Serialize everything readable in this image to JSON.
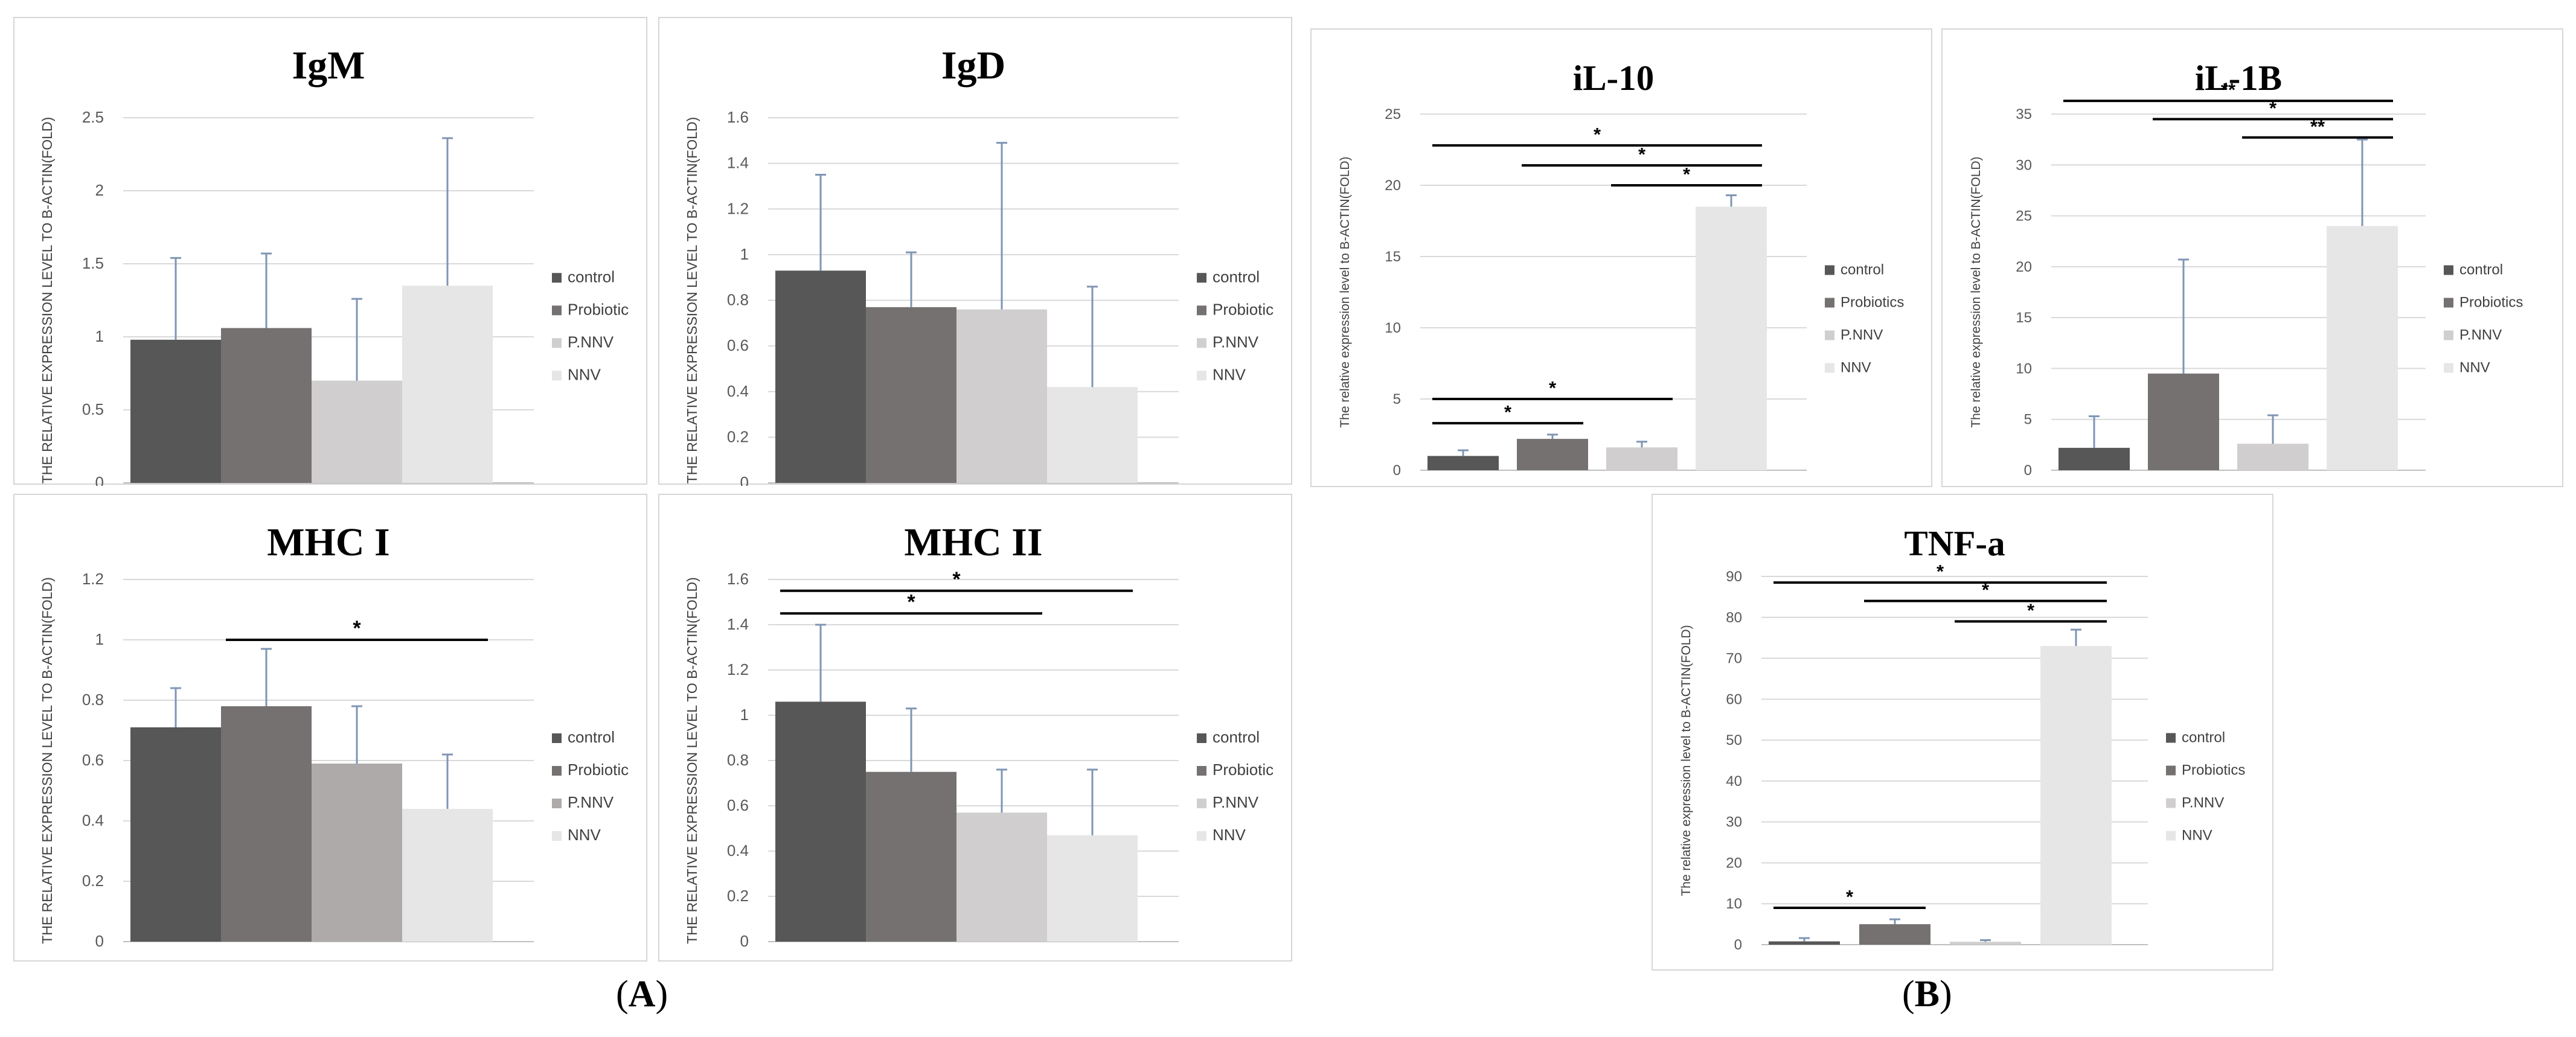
{
  "figure": {
    "panel_labels": [
      {
        "open": "(",
        "letter": "A",
        "close": ")"
      },
      {
        "open": "(",
        "letter": "B",
        "close": ")"
      }
    ]
  },
  "colors": {
    "control": "#575757",
    "probiotic": "#757171",
    "pnnv": "#d0cece",
    "nnv": "#e7e6e6",
    "error_bar": "#7f95b4",
    "gridline": "#d9d9d9",
    "sig_line": "#000000"
  },
  "chart_data": [
    {
      "type": "bar",
      "title": "IgM",
      "ylabel": "THE RELATIVE EXPRESSION LEVEL TO B-ACTIN(FOLD)",
      "ylim": [
        0,
        2.5
      ],
      "yticks": [
        "0",
        "0.5",
        "1",
        "1.5",
        "2",
        "2.5"
      ],
      "categories": [
        "control",
        "Probiotic",
        "P.NNV",
        "NNV"
      ],
      "values": [
        0.98,
        1.06,
        0.7,
        1.35
      ],
      "errors": [
        0.56,
        0.51,
        0.56,
        1.01
      ],
      "bar_colors": [
        "#575757",
        "#757171",
        "#d0cece",
        "#e7e6e6"
      ],
      "legend": [
        {
          "label": "control",
          "color": "#575757"
        },
        {
          "label": "Probiotic",
          "color": "#757171"
        },
        {
          "label": "P.NNV",
          "color": "#d0cece"
        },
        {
          "label": "NNV",
          "color": "#e7e6e6"
        }
      ],
      "significance": []
    },
    {
      "type": "bar",
      "title": "IgD",
      "ylabel": "THE RELATIVE EXPRESSION LEVEL TO B-ACTIN(FOLD)",
      "ylim": [
        0,
        1.6
      ],
      "yticks": [
        "0",
        "0.2",
        "0.4",
        "0.6",
        "0.8",
        "1",
        "1.2",
        "1.4",
        "1.6"
      ],
      "categories": [
        "control",
        "Probiotic",
        "P.NNV",
        "NNV"
      ],
      "values": [
        0.93,
        0.77,
        0.76,
        0.42
      ],
      "errors": [
        0.42,
        0.24,
        0.73,
        0.44
      ],
      "bar_colors": [
        "#575757",
        "#757171",
        "#d0cece",
        "#e7e6e6"
      ],
      "legend": [
        {
          "label": "control",
          "color": "#575757"
        },
        {
          "label": "Probiotic",
          "color": "#757171"
        },
        {
          "label": "P.NNV",
          "color": "#d0cece"
        },
        {
          "label": "NNV",
          "color": "#e7e6e6"
        }
      ],
      "significance": []
    },
    {
      "type": "bar",
      "title": "MHC I",
      "ylabel": "THE RELATIVE EXPRESSION LEVEL TO B-ACTIN(FOLD)",
      "ylim": [
        0,
        1.2
      ],
      "yticks": [
        "0",
        "0.2",
        "0.4",
        "0.6",
        "0.8",
        "1",
        "1.2"
      ],
      "categories": [
        "control",
        "Probiotic",
        "P.NNV",
        "NNV"
      ],
      "values": [
        0.71,
        0.78,
        0.59,
        0.44
      ],
      "errors": [
        0.13,
        0.19,
        0.19,
        0.18
      ],
      "bar_colors": [
        "#575757",
        "#757171",
        "#aeaaaa",
        "#e7e6e6"
      ],
      "legend": [
        {
          "label": "control",
          "color": "#575757"
        },
        {
          "label": "Probiotic",
          "color": "#757171"
        },
        {
          "label": "P.NNV",
          "color": "#aeaaaa"
        },
        {
          "label": "NNV",
          "color": "#e7e6e6"
        }
      ],
      "significance": [
        {
          "from": 1,
          "to": 3,
          "level": 1.0,
          "label": "*"
        }
      ]
    },
    {
      "type": "bar",
      "title": "MHC II",
      "ylabel": "THE RELATIVE EXPRESSION LEVEL TO B-ACTIN(FOLD)",
      "ylim": [
        0,
        1.6
      ],
      "yticks": [
        "0",
        "0.2",
        "0.4",
        "0.6",
        "0.8",
        "1",
        "1.2",
        "1.4",
        "1.6"
      ],
      "categories": [
        "control",
        "Probiotic",
        "P.NNV",
        "NNV"
      ],
      "values": [
        1.06,
        0.75,
        0.57,
        0.47
      ],
      "errors": [
        0.34,
        0.28,
        0.19,
        0.29
      ],
      "bar_colors": [
        "#575757",
        "#757171",
        "#d0cece",
        "#e7e6e6"
      ],
      "legend": [
        {
          "label": "control",
          "color": "#575757"
        },
        {
          "label": "Probiotic",
          "color": "#757171"
        },
        {
          "label": "P.NNV",
          "color": "#d0cece"
        },
        {
          "label": "NNV",
          "color": "#e7e6e6"
        }
      ],
      "significance": [
        {
          "from": 0,
          "to": 3,
          "level": 1.55,
          "label": "*"
        },
        {
          "from": 0,
          "to": 2,
          "level": 1.45,
          "label": "*"
        }
      ]
    },
    {
      "type": "bar",
      "title": "iL-10",
      "ylabel": "The relative expression level to B-ACTIN(FOLD)",
      "ylim": [
        0,
        25
      ],
      "yticks": [
        "0",
        "5",
        "10",
        "15",
        "20",
        "25"
      ],
      "categories": [
        "control",
        "Probiotics",
        "P.NNV",
        "NNV"
      ],
      "values": [
        1.0,
        2.2,
        1.6,
        18.5
      ],
      "errors": [
        0.4,
        0.3,
        0.4,
        0.8
      ],
      "bar_colors": [
        "#575757",
        "#757171",
        "#d0cece",
        "#e7e6e6"
      ],
      "legend": [
        {
          "label": "control",
          "color": "#575757"
        },
        {
          "label": "Probiotics",
          "color": "#757171"
        },
        {
          "label": "P.NNV",
          "color": "#d0cece"
        },
        {
          "label": "NNV",
          "color": "#e7e6e6"
        }
      ],
      "significance": [
        {
          "from": 0,
          "to": 3,
          "level": 22.8,
          "label": "*"
        },
        {
          "from": 1,
          "to": 3,
          "level": 21.4,
          "label": "*"
        },
        {
          "from": 2,
          "to": 3,
          "level": 20.0,
          "label": "*"
        },
        {
          "from": 0,
          "to": 2,
          "level": 5.0,
          "label": "*"
        },
        {
          "from": 0,
          "to": 1,
          "level": 3.3,
          "label": "*"
        }
      ]
    },
    {
      "type": "bar",
      "title": "iL-1B",
      "ylabel": "The relative expression level to B-ACTIN(FOLD)",
      "ylim": [
        0,
        35
      ],
      "yticks": [
        "0",
        "5",
        "10",
        "15",
        "20",
        "25",
        "30",
        "35"
      ],
      "categories": [
        "control",
        "Probiotics",
        "P.NNV",
        "NNV"
      ],
      "values": [
        2.2,
        9.5,
        2.6,
        24.0
      ],
      "errors": [
        3.1,
        11.2,
        2.8,
        8.5
      ],
      "bar_colors": [
        "#575757",
        "#757171",
        "#d0cece",
        "#e7e6e6"
      ],
      "legend": [
        {
          "label": "control",
          "color": "#575757"
        },
        {
          "label": "Probiotics",
          "color": "#757171"
        },
        {
          "label": "P.NNV",
          "color": "#d0cece"
        },
        {
          "label": "NNV",
          "color": "#e7e6e6"
        }
      ],
      "significance": [
        {
          "from": 0,
          "to": 3,
          "level": 36.3,
          "label": "**"
        },
        {
          "from": 1,
          "to": 3,
          "level": 34.5,
          "label": "*"
        },
        {
          "from": 2,
          "to": 3,
          "level": 32.7,
          "label": "**"
        }
      ]
    },
    {
      "type": "bar",
      "title": "TNF-a",
      "ylabel": "The relative expression level to B-ACTIN(FOLD)",
      "ylim": [
        0,
        90
      ],
      "yticks": [
        "0",
        "10",
        "20",
        "30",
        "40",
        "50",
        "60",
        "70",
        "80",
        "90"
      ],
      "categories": [
        "control",
        "Probiotics",
        "P.NNV",
        "NNV"
      ],
      "values": [
        0.8,
        5.0,
        0.7,
        73.0
      ],
      "errors": [
        0.8,
        1.2,
        0.4,
        4.0
      ],
      "bar_colors": [
        "#575757",
        "#757171",
        "#d0cece",
        "#e7e6e6"
      ],
      "legend": [
        {
          "label": "control",
          "color": "#575757"
        },
        {
          "label": "Probiotics",
          "color": "#757171"
        },
        {
          "label": "P.NNV",
          "color": "#d0cece"
        },
        {
          "label": "NNV",
          "color": "#e7e6e6"
        }
      ],
      "significance": [
        {
          "from": 0,
          "to": 3,
          "level": 88.5,
          "label": "*"
        },
        {
          "from": 1,
          "to": 3,
          "level": 84.0,
          "label": "*"
        },
        {
          "from": 2,
          "to": 3,
          "level": 79.0,
          "label": "*"
        },
        {
          "from": 0,
          "to": 1,
          "level": 9.0,
          "label": "*"
        }
      ]
    }
  ]
}
